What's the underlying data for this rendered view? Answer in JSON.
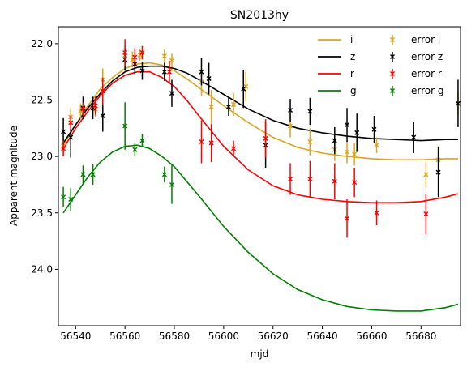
{
  "chart_data": {
    "type": "scatter",
    "title": "SN2013hy",
    "xlabel": "mjd",
    "ylabel": "Apparent magnitude",
    "xlim": [
      56533,
      56696
    ],
    "ylim": [
      24.5,
      21.85
    ],
    "y_inverted": true,
    "xticks": [
      "56540",
      "56560",
      "56580",
      "56600",
      "56620",
      "56640",
      "56660",
      "56680"
    ],
    "xtick_values": [
      56540,
      56560,
      56580,
      56600,
      56620,
      56640,
      56660,
      56680
    ],
    "yticks": [
      "22.0",
      "22.5",
      "23.0",
      "23.5",
      "24.0"
    ],
    "ytick_values": [
      22.0,
      22.5,
      23.0,
      23.5,
      24.0
    ],
    "grid": false,
    "legend_position": "top-right",
    "colors": {
      "i": "#daa520",
      "z": "#000000",
      "r": "#ff0000",
      "g": "#008000"
    },
    "legend": {
      "lines": [
        "i",
        "z",
        "r",
        "g"
      ],
      "errors": [
        "error i",
        "error z",
        "error r",
        "error g"
      ]
    },
    "curves": [
      {
        "name": "i",
        "x": [
          56535,
          56540,
          56545,
          56550,
          56555,
          56560,
          56565,
          56570,
          56575,
          56580,
          56585,
          56590,
          56600,
          56610,
          56620,
          56630,
          56640,
          56650,
          56660,
          56670,
          56680,
          56690,
          56695
        ],
        "y": [
          22.9,
          22.72,
          22.55,
          22.4,
          22.3,
          22.22,
          22.18,
          22.17,
          22.19,
          22.24,
          22.31,
          22.39,
          22.55,
          22.7,
          22.83,
          22.92,
          22.97,
          23.0,
          23.02,
          23.03,
          23.03,
          23.02,
          23.02
        ]
      },
      {
        "name": "z",
        "x": [
          56535,
          56540,
          56545,
          56550,
          56555,
          56560,
          56565,
          56570,
          56575,
          56580,
          56585,
          56590,
          56600,
          56610,
          56620,
          56630,
          56640,
          56650,
          56660,
          56670,
          56680,
          56690,
          56695
        ],
        "y": [
          22.88,
          22.72,
          22.57,
          22.44,
          22.33,
          22.25,
          22.21,
          22.2,
          22.2,
          22.22,
          22.26,
          22.32,
          22.45,
          22.58,
          22.68,
          22.75,
          22.79,
          22.82,
          22.84,
          22.85,
          22.86,
          22.85,
          22.85
        ]
      },
      {
        "name": "r",
        "x": [
          56535,
          56540,
          56545,
          56550,
          56555,
          56560,
          56565,
          56570,
          56575,
          56580,
          56585,
          56590,
          56600,
          56610,
          56620,
          56630,
          56640,
          56650,
          56660,
          56670,
          56680,
          56690,
          56695
        ],
        "y": [
          22.93,
          22.75,
          22.6,
          22.46,
          22.35,
          22.28,
          22.25,
          22.25,
          22.3,
          22.38,
          22.5,
          22.64,
          22.91,
          23.12,
          23.26,
          23.34,
          23.38,
          23.4,
          23.41,
          23.41,
          23.4,
          23.36,
          23.33
        ]
      },
      {
        "name": "g",
        "x": [
          56535,
          56540,
          56545,
          56550,
          56555,
          56560,
          56565,
          56570,
          56575,
          56580,
          56590,
          56600,
          56610,
          56620,
          56630,
          56640,
          56650,
          56660,
          56670,
          56680,
          56690,
          56695
        ],
        "y": [
          23.5,
          23.34,
          23.18,
          23.05,
          22.96,
          22.91,
          22.9,
          22.93,
          23.0,
          23.09,
          23.35,
          23.62,
          23.85,
          24.04,
          24.18,
          24.27,
          24.33,
          24.36,
          24.37,
          24.37,
          24.34,
          24.31
        ]
      }
    ],
    "errors": [
      {
        "name": "error i",
        "x": [
          56535,
          56538,
          56542,
          56548,
          56551,
          56560,
          56563,
          56566,
          56576,
          56579,
          56591,
          56595,
          56604,
          56609,
          56627,
          56635,
          56645,
          56650,
          56653,
          56662,
          56682,
          56687,
          56695
        ],
        "y": [
          22.91,
          22.65,
          22.6,
          22.58,
          22.32,
          22.1,
          22.14,
          22.1,
          22.11,
          22.15,
          22.34,
          22.56,
          22.54,
          22.38,
          22.73,
          22.87,
          22.94,
          22.96,
          22.98,
          22.9,
          23.16,
          23.03,
          22.53
        ],
        "err": [
          0.09,
          0.08,
          0.07,
          0.07,
          0.1,
          0.09,
          0.07,
          0.05,
          0.06,
          0.06,
          0.12,
          0.15,
          0.1,
          0.13,
          0.1,
          0.12,
          0.1,
          0.1,
          0.1,
          0.07,
          0.11,
          0.12,
          0.1
        ]
      },
      {
        "name": "error z",
        "x": [
          56535,
          56538,
          56543,
          56547,
          56551,
          56560,
          56564,
          56567,
          56576,
          56579,
          56591,
          56594,
          56602,
          56608,
          56617,
          56627,
          56635,
          56645,
          56650,
          56654,
          56661,
          56677,
          56687,
          56695
        ],
        "y": [
          22.78,
          22.83,
          22.57,
          22.57,
          22.64,
          22.14,
          22.18,
          22.24,
          22.25,
          22.44,
          22.25,
          22.31,
          22.56,
          22.4,
          22.9,
          22.59,
          22.6,
          22.86,
          22.72,
          22.79,
          22.76,
          22.83,
          23.14,
          22.53
        ],
        "err": [
          0.12,
          0.18,
          0.1,
          0.1,
          0.14,
          0.1,
          0.09,
          0.08,
          0.08,
          0.12,
          0.12,
          0.14,
          0.08,
          0.17,
          0.2,
          0.1,
          0.12,
          0.12,
          0.15,
          0.17,
          0.12,
          0.14,
          0.22,
          0.21
        ]
      },
      {
        "name": "error r",
        "x": [
          56535,
          56538,
          56543,
          56548,
          56551,
          56560,
          56564,
          56567,
          56578,
          56591,
          56595,
          56604,
          56617,
          56627,
          56635,
          56645,
          56650,
          56653,
          56662,
          56682
        ],
        "y": [
          22.93,
          22.7,
          22.58,
          22.55,
          22.42,
          22.08,
          22.12,
          22.08,
          22.25,
          22.87,
          22.88,
          22.93,
          22.84,
          23.2,
          23.2,
          23.22,
          23.55,
          23.23,
          23.5,
          23.51
        ],
        "err": [
          0.07,
          0.06,
          0.06,
          0.08,
          0.12,
          0.12,
          0.08,
          0.06,
          0.1,
          0.19,
          0.17,
          0.07,
          0.17,
          0.14,
          0.16,
          0.16,
          0.17,
          0.13,
          0.11,
          0.18
        ]
      },
      {
        "name": "error g",
        "x": [
          56535,
          56538,
          56543,
          56547,
          56560,
          56564,
          56567,
          56576,
          56579
        ],
        "y": [
          23.36,
          23.38,
          23.16,
          23.16,
          22.73,
          22.94,
          22.86,
          23.16,
          23.25
        ],
        "err": [
          0.09,
          0.1,
          0.08,
          0.09,
          0.21,
          0.06,
          0.06,
          0.07,
          0.17
        ]
      }
    ]
  }
}
